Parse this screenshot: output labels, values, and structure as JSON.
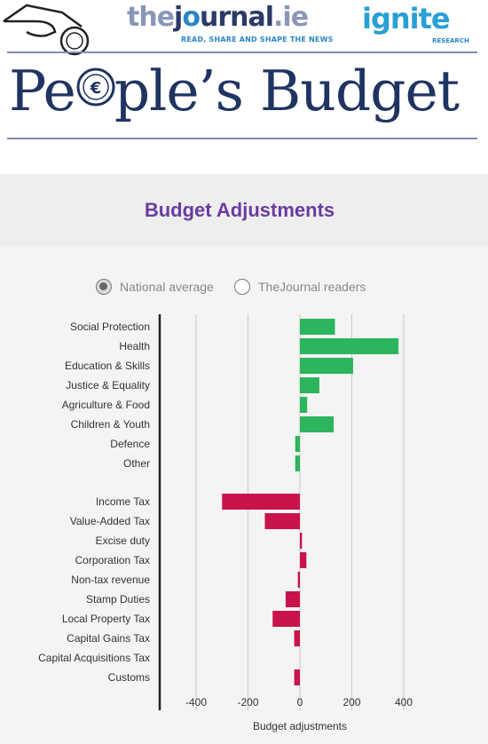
{
  "header": {
    "journal_the": "the",
    "journal_j": "j",
    "journal_o": "o",
    "journal_urnal": "urnal",
    "journal_ie": ".ie",
    "journal_tagline": "READ, SHARE AND SHAPE THE NEWS",
    "ignite": "ignite",
    "ignite_sub": "RESEARCH",
    "headline_pre": "Pe",
    "headline_post": "ple’s Budget"
  },
  "legend": {
    "national": "National average",
    "readers": "TheJournal readers",
    "selected": "national"
  },
  "colors": {
    "spending": "#2db55d",
    "revenue": "#c8144a",
    "title": "#6a3ca0"
  },
  "chart_data": {
    "type": "bar",
    "orientation": "horizontal",
    "title": "Budget Adjustments",
    "xlabel": "Budget adjustments",
    "xlim": [
      -530,
      440
    ],
    "xticks": [
      -400,
      -200,
      0,
      200,
      400
    ],
    "grid": true,
    "groups": [
      {
        "color": "#2db55d",
        "categories": [
          "Social Protection",
          "Health",
          "Education & Skills",
          "Justice & Equality",
          "Agriculture & Food",
          "Children & Youth",
          "Defence",
          "Other"
        ],
        "values": [
          135,
          380,
          205,
          75,
          28,
          130,
          -18,
          -18
        ]
      },
      {
        "color": "#c8144a",
        "categories": [
          "Income Tax",
          "Value-Added Tax",
          "Excise duty",
          "Corporation Tax",
          "Non-tax revenue",
          "Stamp Duties",
          "Local Property Tax",
          "Capital Gains Tax",
          "Capital Acquisitions Tax",
          "Customs"
        ],
        "values": [
          -300,
          -135,
          8,
          25,
          -8,
          -55,
          -105,
          -22,
          0,
          -22
        ]
      }
    ]
  }
}
